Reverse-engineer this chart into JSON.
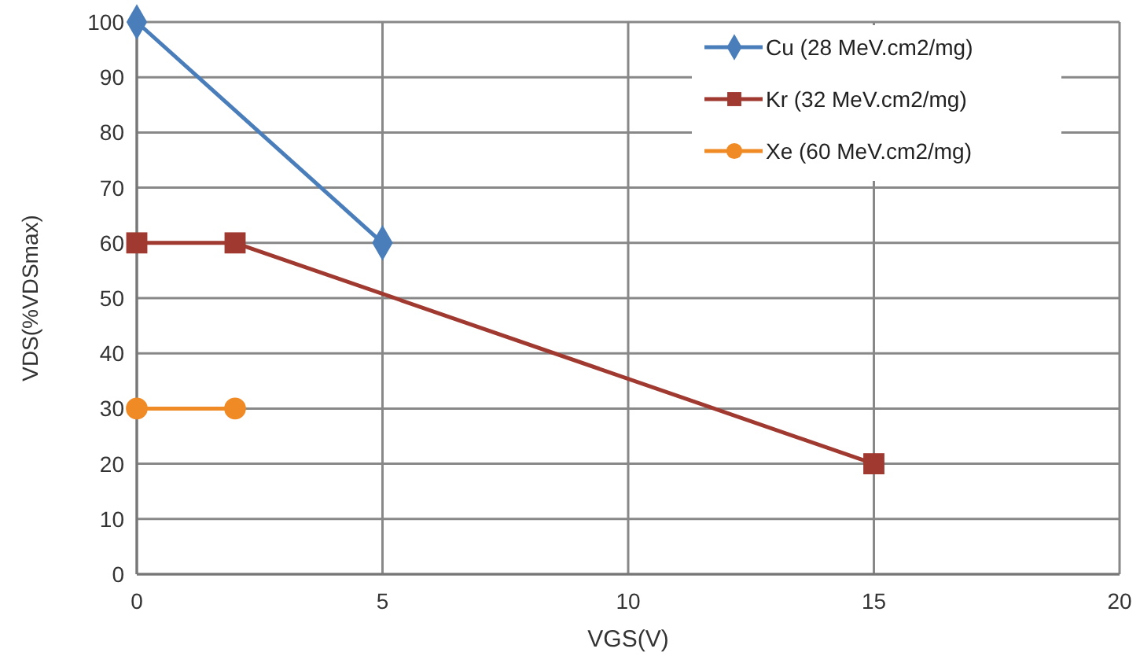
{
  "chart_data": {
    "type": "line",
    "xlabel": "VGS(V)",
    "ylabel": "VDS(%VDSmax)",
    "xlim": [
      0,
      20
    ],
    "xticks": [
      0,
      5,
      10,
      15,
      20
    ],
    "ylim": [
      0,
      100
    ],
    "yticks": [
      0,
      10,
      20,
      30,
      40,
      50,
      60,
      70,
      80,
      90,
      100
    ],
    "grid": true,
    "legend": "top right",
    "line_style": "solid",
    "series": [
      {
        "name": "Cu (28 MeV.cm2/mg)",
        "color": "#4a7ebb",
        "x": [
          0,
          5
        ],
        "values": [
          100,
          60
        ],
        "marker": "diamond"
      },
      {
        "name": "Kr (32 MeV.cm2/mg)",
        "color": "#a0392f",
        "x": [
          0,
          2,
          15
        ],
        "values": [
          60,
          60,
          20
        ],
        "marker": "square"
      },
      {
        "name": "Xe (60 MeV.cm2/mg)",
        "color": "#f08a24",
        "x": [
          0,
          2
        ],
        "values": [
          30,
          30
        ],
        "marker": "circle"
      }
    ]
  }
}
